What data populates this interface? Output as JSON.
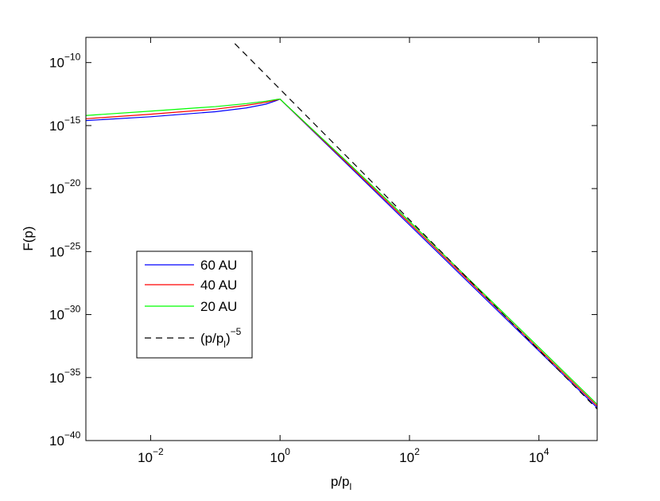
{
  "chart_data": {
    "type": "line",
    "xlabel": "p/p",
    "xlabel_sub": "l",
    "ylabel": "F(p)",
    "xscale": "log",
    "yscale": "log",
    "xlim": [
      0.001,
      79400
    ],
    "ylim": [
      1e-40,
      1e-08
    ],
    "xticks": [
      {
        "value": 0.01,
        "base": "10",
        "exp": "−2"
      },
      {
        "value": 1,
        "base": "10",
        "exp": "0"
      },
      {
        "value": 100,
        "base": "10",
        "exp": "2"
      },
      {
        "value": 10000,
        "base": "10",
        "exp": "4"
      }
    ],
    "yticks": [
      {
        "value": 1e-10,
        "base": "10",
        "exp": "−10"
      },
      {
        "value": 1e-15,
        "base": "10",
        "exp": "−15"
      },
      {
        "value": 1e-20,
        "base": "10",
        "exp": "−20"
      },
      {
        "value": 1e-25,
        "base": "10",
        "exp": "−25"
      },
      {
        "value": 1e-30,
        "base": "10",
        "exp": "−30"
      },
      {
        "value": 1e-35,
        "base": "10",
        "exp": "−35"
      },
      {
        "value": 1e-40,
        "base": "10",
        "exp": "−40"
      }
    ],
    "grid": false,
    "legend_position": "center-left",
    "series": [
      {
        "name": "60 AU",
        "color": "#0000ff",
        "dash": "solid",
        "x": [
          0.001,
          0.01,
          0.1,
          0.3,
          0.6,
          0.9,
          1,
          10,
          100,
          1000,
          10000,
          79400
        ],
        "y": [
          2.5e-15,
          5e-15,
          1.26e-14,
          2.5e-14,
          5e-14,
          1e-13,
          1.26e-13,
          1.3e-18,
          1.3e-23,
          1.3e-28,
          1.3e-33,
          4e-38
        ]
      },
      {
        "name": "40 AU",
        "color": "#ff0000",
        "dash": "solid",
        "x": [
          0.001,
          0.01,
          0.1,
          0.3,
          0.6,
          0.9,
          1,
          10,
          100,
          1000,
          10000,
          79400
        ],
        "y": [
          3.5e-15,
          8e-15,
          2e-14,
          4e-14,
          7e-14,
          1.1e-13,
          1.26e-13,
          1.6e-18,
          1.8e-23,
          1.8e-28,
          1.8e-33,
          5.5e-38
        ]
      },
      {
        "name": "20 AU",
        "color": "#00ff00",
        "dash": "solid",
        "x": [
          0.001,
          0.01,
          0.1,
          0.3,
          0.6,
          0.9,
          1,
          10,
          100,
          1000,
          10000,
          79400
        ],
        "y": [
          6.3e-15,
          1.4e-14,
          3.2e-14,
          5.5e-14,
          8.5e-14,
          1.2e-13,
          1.26e-13,
          2e-18,
          2.5e-23,
          2.5e-28,
          2.5e-33,
          7.5e-38
        ]
      },
      {
        "name": "(p/p",
        "name_sub": "l",
        "name_sup": "−5",
        "suffix": ")",
        "color": "#000000",
        "dash": "dashed",
        "x": [
          0.2,
          79400
        ],
        "y": [
          3.2e-09,
          3.2e-38
        ]
      }
    ]
  }
}
